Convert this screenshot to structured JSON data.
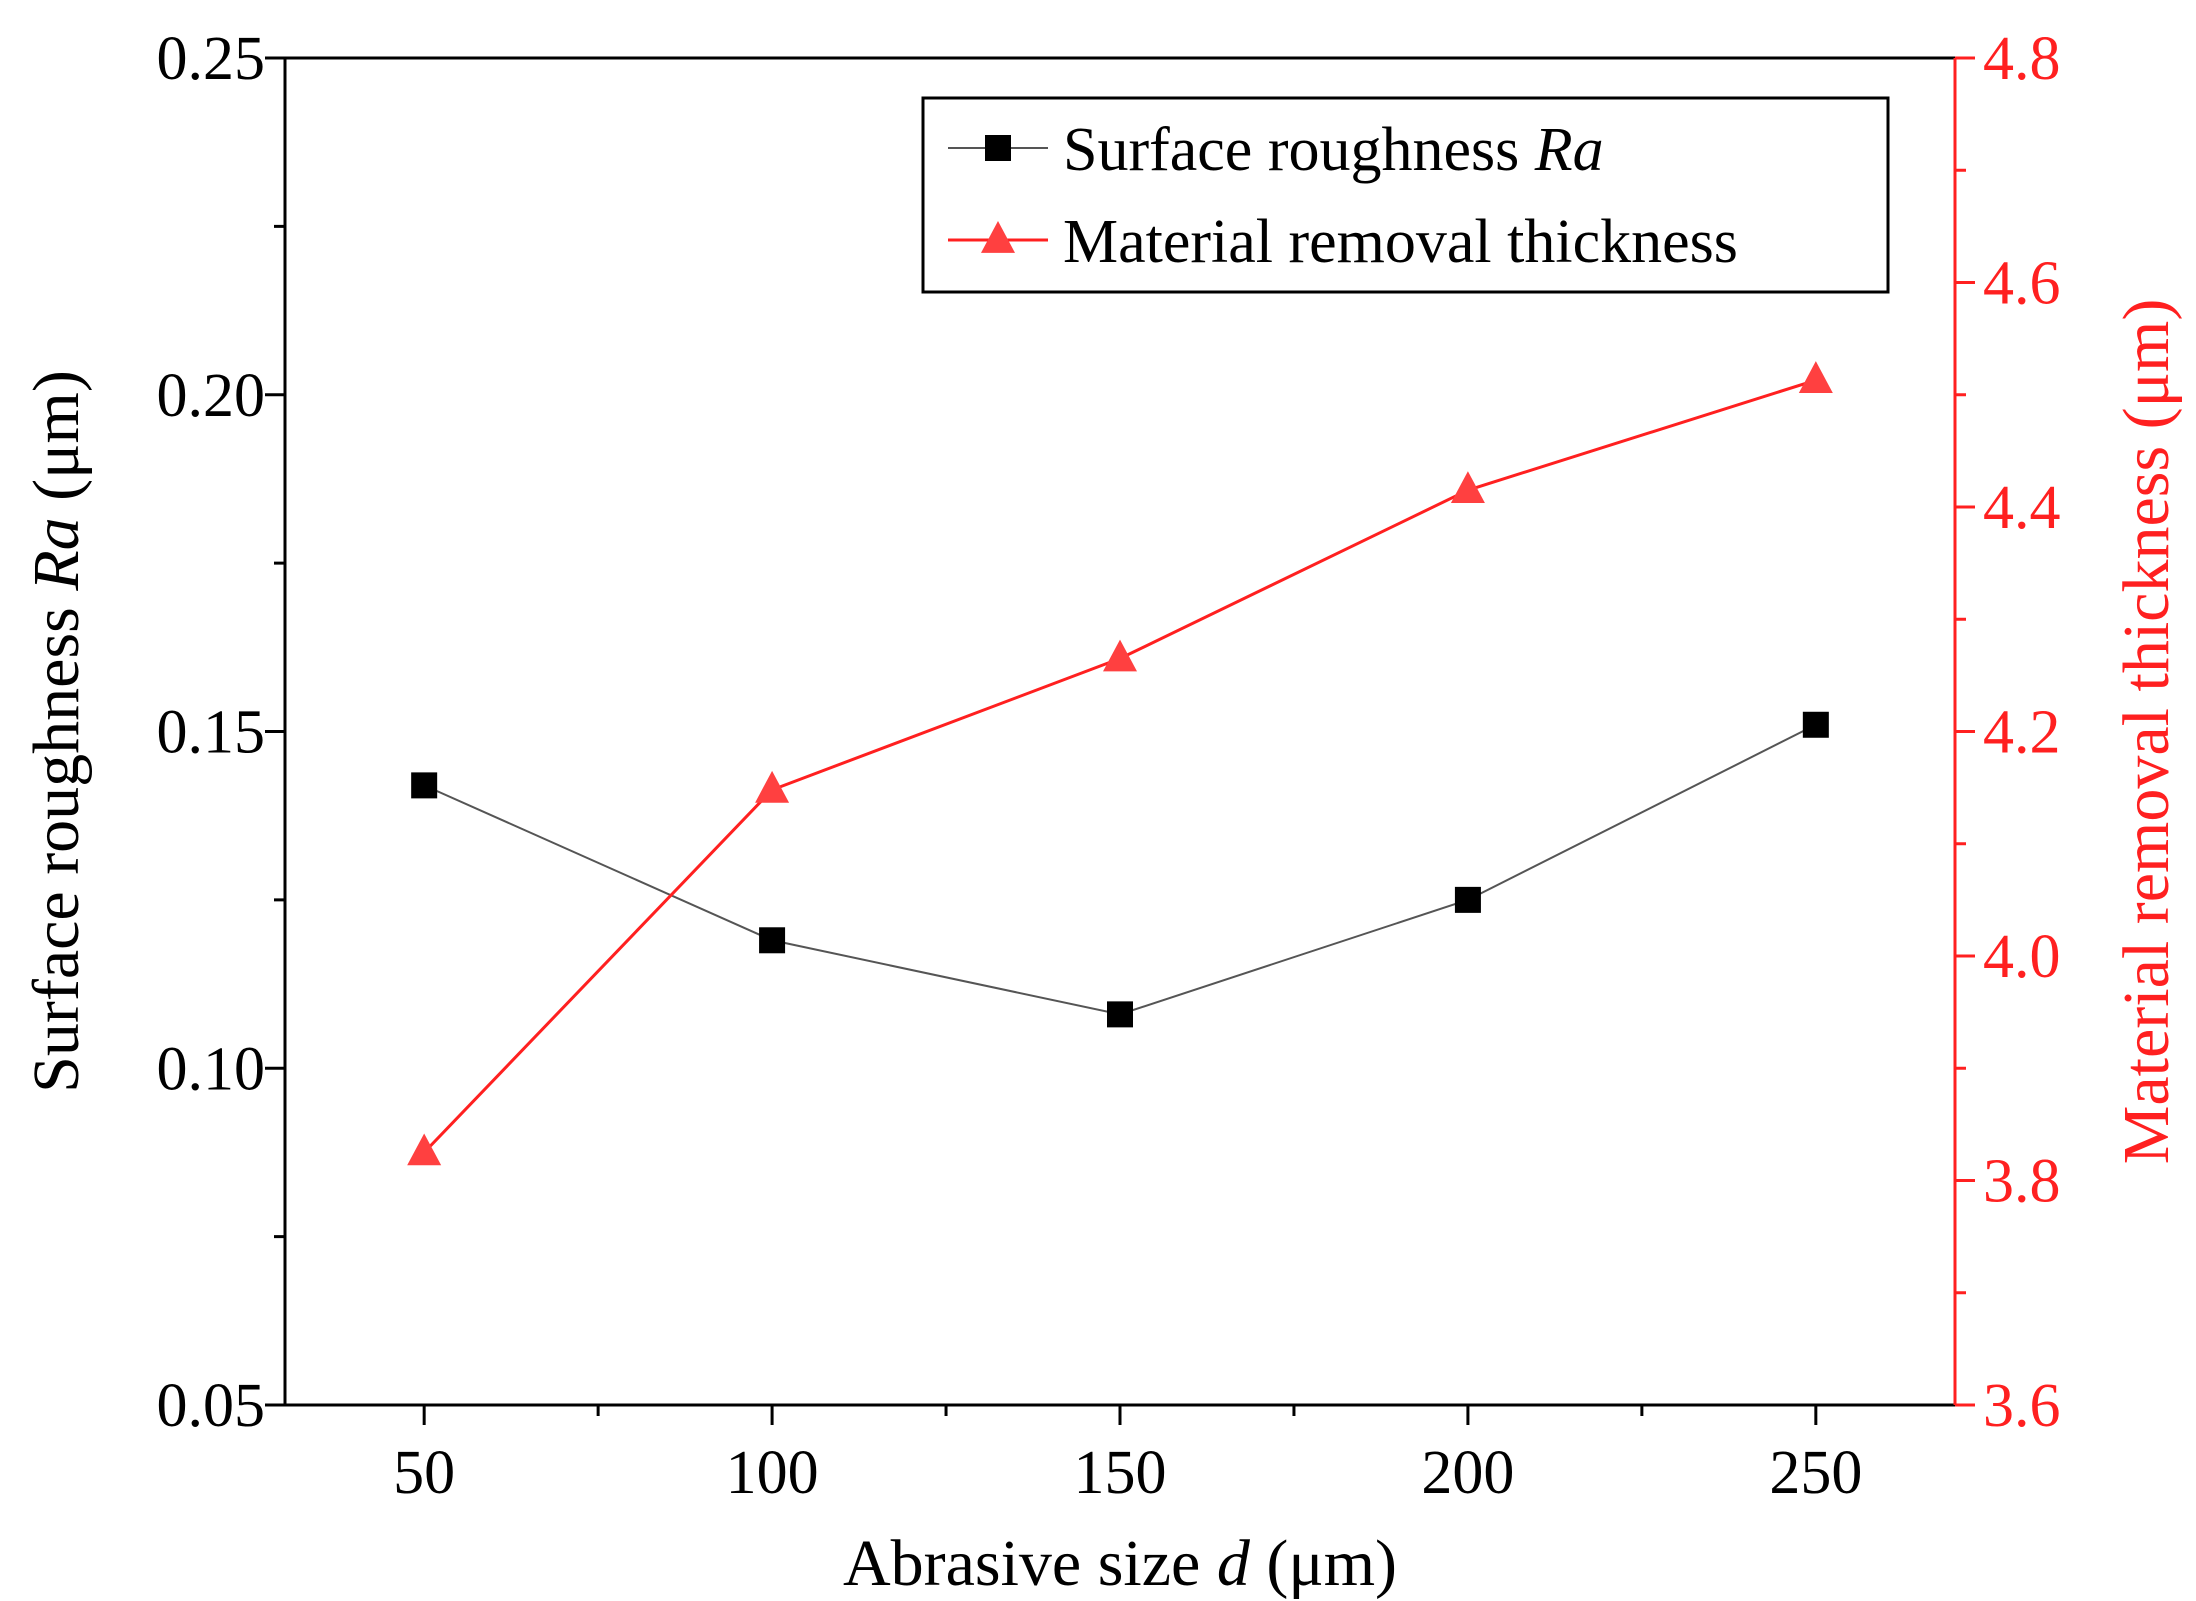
{
  "chart_data": {
    "type": "line",
    "xlabel_parts": [
      "Abrasive size ",
      "d",
      " (μm)"
    ],
    "ylabel_left_parts": [
      "Surface roughness ",
      "Ra",
      " (μm)"
    ],
    "ylabel_right": "Material removal thickness (μm)",
    "x": [
      50,
      100,
      150,
      200,
      250
    ],
    "xlim": [
      30,
      270
    ],
    "x_ticks": [
      50,
      100,
      150,
      200,
      250
    ],
    "x_tick_labels": [
      "50",
      "100",
      "150",
      "200",
      "250"
    ],
    "ylim_left": [
      0.05,
      0.25
    ],
    "y_left_ticks": [
      0.05,
      0.1,
      0.15,
      0.2,
      0.25
    ],
    "y_left_tick_labels": [
      "0.05",
      "0.10",
      "0.15",
      "0.20",
      "0.25"
    ],
    "ylim_right": [
      3.6,
      4.8
    ],
    "y_right_ticks": [
      3.6,
      3.8,
      4.0,
      4.2,
      4.4,
      4.6,
      4.8
    ],
    "y_right_tick_labels": [
      "3.6",
      "3.8",
      "4.0",
      "4.2",
      "4.4",
      "4.6",
      "4.8"
    ],
    "legend_position": "top-right",
    "series": [
      {
        "name_parts": [
          "Surface roughness ",
          "Ra"
        ],
        "axis": "left",
        "marker": "square",
        "color": "#000000",
        "line_color": "#555555",
        "values": [
          0.142,
          0.119,
          0.108,
          0.125,
          0.151
        ]
      },
      {
        "name_parts": [
          "Material removal thickness"
        ],
        "axis": "right",
        "marker": "triangle",
        "color": "#ff4040",
        "line_color": "#ff2020",
        "values": [
          3.825,
          4.148,
          4.265,
          4.415,
          4.513
        ]
      }
    ]
  }
}
